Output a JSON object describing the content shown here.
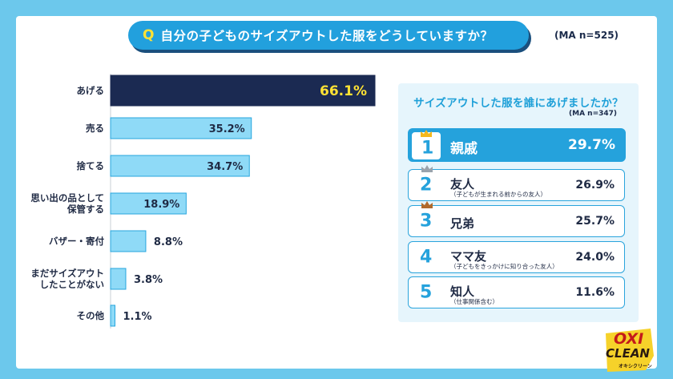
{
  "header": {
    "q_mark": "Q",
    "question": "自分の子どものサイズアウトした服をどうしていますか？",
    "sample": "(MA n=525)"
  },
  "chart_data": [
    {
      "type": "bar",
      "orientation": "horizontal",
      "title": "自分の子どものサイズアウトした服をどうしていますか？",
      "sample": "(MA n=525)",
      "categories": [
        "あげる",
        "売る",
        "捨てる",
        "思い出の品として保管する",
        "バザー・寄付",
        "まだサイズアウトしたことがない",
        "その他"
      ],
      "category_lines": [
        [
          "あげる"
        ],
        [
          "売る"
        ],
        [
          "捨てる"
        ],
        [
          "思い出の品として",
          "保管する"
        ],
        [
          "バザー・寄付"
        ],
        [
          "まだサイズアウト",
          "したことがない"
        ],
        [
          "その他"
        ]
      ],
      "values": [
        66.1,
        35.2,
        34.7,
        18.9,
        8.8,
        3.8,
        1.1
      ],
      "value_labels": [
        "66.1%",
        "35.2%",
        "34.7%",
        "18.9%",
        "8.8%",
        "3.8%",
        "1.1%"
      ],
      "highlight_index": 0,
      "colors": {
        "highlight": "#1b2a52",
        "bar": "#8fdaf7",
        "bar_border": "#27a6de",
        "highlight_label": "#ffe234"
      },
      "xlim": [
        0,
        70
      ]
    },
    {
      "type": "table",
      "title": "サイズアウトした服を誰にあげましたか？",
      "sample": "(MA n=347)",
      "rows": [
        {
          "rank": "1",
          "name": "親戚",
          "note": "",
          "value": 29.7,
          "value_label": "29.7%",
          "crown": "gold"
        },
        {
          "rank": "2",
          "name": "友人",
          "note": "（子どもが生まれる前からの友人）",
          "value": 26.9,
          "value_label": "26.9%",
          "crown": "silver"
        },
        {
          "rank": "3",
          "name": "兄弟",
          "note": "",
          "value": 25.7,
          "value_label": "25.7%",
          "crown": "bronze"
        },
        {
          "rank": "4",
          "name": "ママ友",
          "note": "（子どもをきっかけに知り合った友人）",
          "value": 24.0,
          "value_label": "24.0%",
          "crown": ""
        },
        {
          "rank": "5",
          "name": "知人",
          "note": "（仕事関係含む）",
          "value": 11.6,
          "value_label": "11.6%",
          "crown": ""
        }
      ],
      "colors": {
        "accent": "#25a2dc",
        "panel": "#e6f5fc"
      }
    }
  ],
  "logo": {
    "line1": "OXI",
    "line2": "CLEAN",
    "line3": "オキシクリーン"
  }
}
